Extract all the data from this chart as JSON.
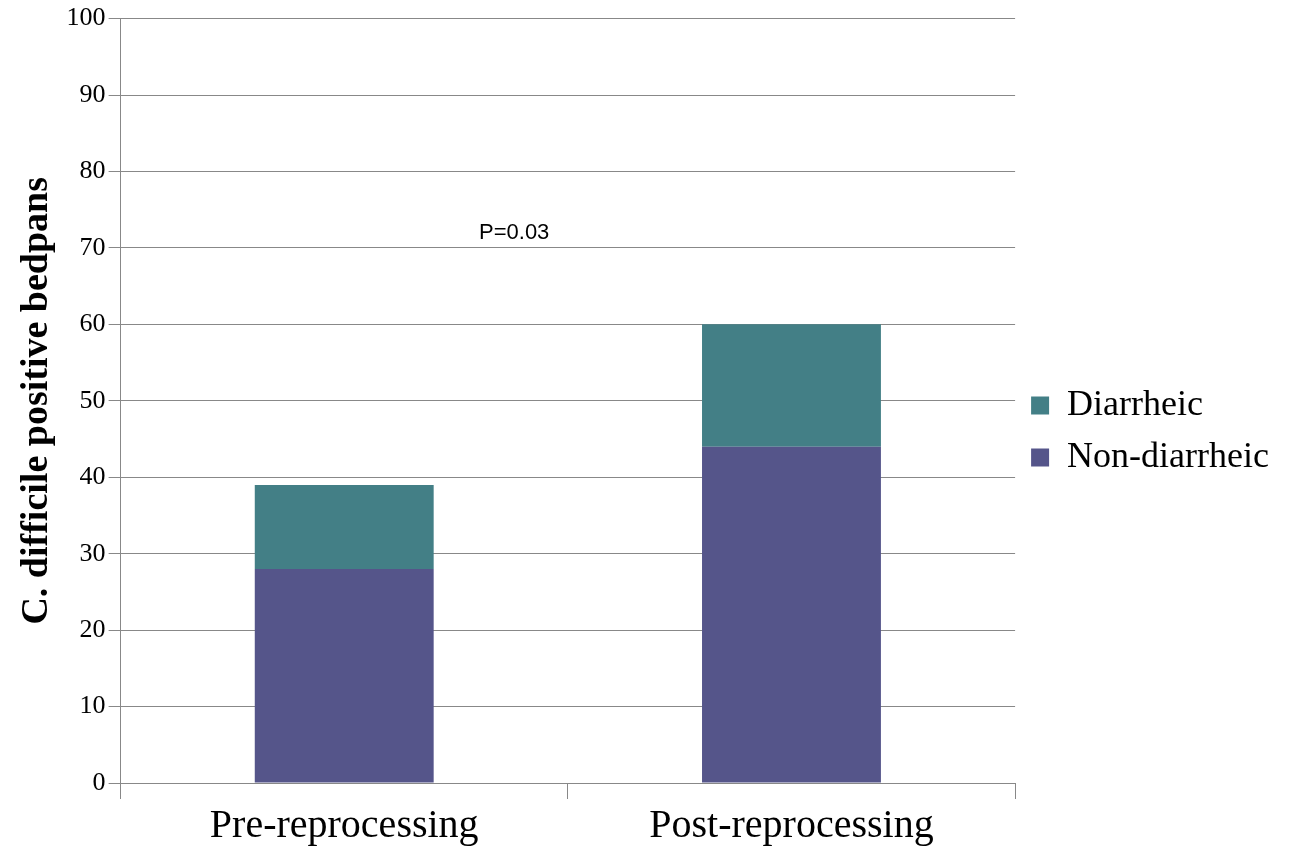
{
  "chart_data": {
    "type": "bar",
    "stacked": true,
    "ylabel": "C. difficile positive bedpans",
    "categories": [
      "Pre-reprocessing",
      "Post-reprocessing"
    ],
    "series": [
      {
        "name": "Non-diarrheic",
        "color": "#55558a",
        "values": [
          28,
          44
        ]
      },
      {
        "name": "Diarrheic",
        "color": "#437f86",
        "values": [
          11,
          16
        ]
      }
    ],
    "ylim": [
      0,
      100
    ],
    "yticks": [
      0,
      10,
      20,
      30,
      40,
      50,
      60,
      70,
      80,
      90,
      100
    ],
    "grid": "y",
    "legend": "right",
    "annotations": [
      "P=0.03"
    ]
  }
}
